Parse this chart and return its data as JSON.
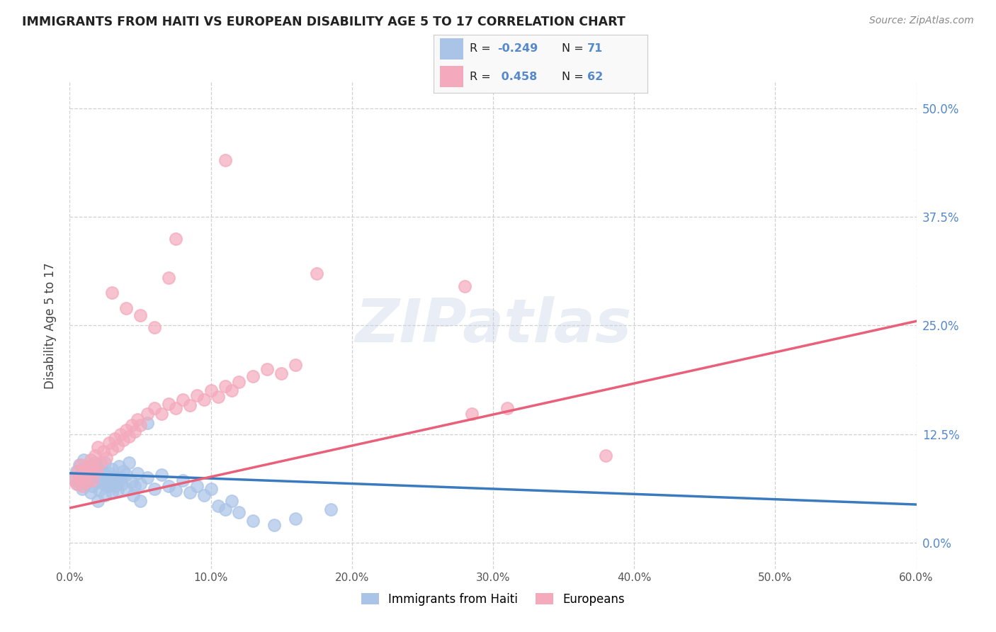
{
  "title": "IMMIGRANTS FROM HAITI VS EUROPEAN DISABILITY AGE 5 TO 17 CORRELATION CHART",
  "source": "Source: ZipAtlas.com",
  "ylabel_label": "Disability Age 5 to 17",
  "xlim": [
    0.0,
    0.6
  ],
  "ylim": [
    -0.03,
    0.53
  ],
  "haiti_scatter_color": "#aac4e8",
  "european_scatter_color": "#f4aabc",
  "haiti_line_color": "#3a7abf",
  "european_line_color": "#e8607a",
  "right_tick_color": "#5588cc",
  "haiti_R": -0.249,
  "haiti_N": 71,
  "european_R": 0.458,
  "european_N": 62,
  "haiti_line_x": [
    0.0,
    0.6
  ],
  "haiti_line_y": [
    0.08,
    0.044
  ],
  "european_line_x": [
    0.0,
    0.6
  ],
  "european_line_y": [
    0.04,
    0.255
  ],
  "watermark": "ZIPatlas",
  "bottom_legend_labels": [
    "Immigrants from Haiti",
    "Europeans"
  ],
  "haiti_points": [
    [
      0.003,
      0.075
    ],
    [
      0.005,
      0.082
    ],
    [
      0.006,
      0.068
    ],
    [
      0.007,
      0.09
    ],
    [
      0.008,
      0.078
    ],
    [
      0.009,
      0.062
    ],
    [
      0.01,
      0.085
    ],
    [
      0.011,
      0.072
    ],
    [
      0.012,
      0.068
    ],
    [
      0.013,
      0.08
    ],
    [
      0.014,
      0.074
    ],
    [
      0.015,
      0.088
    ],
    [
      0.016,
      0.065
    ],
    [
      0.017,
      0.078
    ],
    [
      0.018,
      0.083
    ],
    [
      0.019,
      0.07
    ],
    [
      0.02,
      0.086
    ],
    [
      0.021,
      0.06
    ],
    [
      0.022,
      0.075
    ],
    [
      0.023,
      0.082
    ],
    [
      0.024,
      0.068
    ],
    [
      0.025,
      0.092
    ],
    [
      0.026,
      0.078
    ],
    [
      0.027,
      0.065
    ],
    [
      0.028,
      0.08
    ],
    [
      0.029,
      0.07
    ],
    [
      0.03,
      0.085
    ],
    [
      0.031,
      0.076
    ],
    [
      0.032,
      0.065
    ],
    [
      0.033,
      0.072
    ],
    [
      0.034,
      0.06
    ],
    [
      0.035,
      0.088
    ],
    [
      0.036,
      0.075
    ],
    [
      0.037,
      0.068
    ],
    [
      0.038,
      0.082
    ],
    [
      0.04,
      0.078
    ],
    [
      0.042,
      0.092
    ],
    [
      0.044,
      0.07
    ],
    [
      0.046,
      0.065
    ],
    [
      0.048,
      0.08
    ],
    [
      0.05,
      0.068
    ],
    [
      0.055,
      0.075
    ],
    [
      0.06,
      0.062
    ],
    [
      0.065,
      0.078
    ],
    [
      0.07,
      0.065
    ],
    [
      0.075,
      0.06
    ],
    [
      0.08,
      0.072
    ],
    [
      0.085,
      0.058
    ],
    [
      0.09,
      0.065
    ],
    [
      0.095,
      0.055
    ],
    [
      0.01,
      0.095
    ],
    [
      0.015,
      0.058
    ],
    [
      0.018,
      0.092
    ],
    [
      0.02,
      0.048
    ],
    [
      0.025,
      0.055
    ],
    [
      0.028,
      0.065
    ],
    [
      0.03,
      0.058
    ],
    [
      0.035,
      0.072
    ],
    [
      0.04,
      0.062
    ],
    [
      0.045,
      0.055
    ],
    [
      0.05,
      0.048
    ],
    [
      0.055,
      0.138
    ],
    [
      0.1,
      0.062
    ],
    [
      0.105,
      0.042
    ],
    [
      0.11,
      0.038
    ],
    [
      0.115,
      0.048
    ],
    [
      0.12,
      0.035
    ],
    [
      0.13,
      0.025
    ],
    [
      0.145,
      0.02
    ],
    [
      0.16,
      0.028
    ],
    [
      0.185,
      0.038
    ]
  ],
  "european_points": [
    [
      0.003,
      0.072
    ],
    [
      0.005,
      0.068
    ],
    [
      0.006,
      0.082
    ],
    [
      0.007,
      0.075
    ],
    [
      0.008,
      0.09
    ],
    [
      0.009,
      0.065
    ],
    [
      0.01,
      0.078
    ],
    [
      0.011,
      0.085
    ],
    [
      0.012,
      0.07
    ],
    [
      0.013,
      0.088
    ],
    [
      0.014,
      0.08
    ],
    [
      0.015,
      0.095
    ],
    [
      0.016,
      0.072
    ],
    [
      0.017,
      0.088
    ],
    [
      0.018,
      0.1
    ],
    [
      0.019,
      0.082
    ],
    [
      0.02,
      0.11
    ],
    [
      0.022,
      0.092
    ],
    [
      0.024,
      0.105
    ],
    [
      0.026,
      0.098
    ],
    [
      0.028,
      0.115
    ],
    [
      0.03,
      0.108
    ],
    [
      0.032,
      0.12
    ],
    [
      0.034,
      0.112
    ],
    [
      0.036,
      0.125
    ],
    [
      0.038,
      0.118
    ],
    [
      0.04,
      0.13
    ],
    [
      0.042,
      0.122
    ],
    [
      0.044,
      0.135
    ],
    [
      0.046,
      0.128
    ],
    [
      0.048,
      0.142
    ],
    [
      0.05,
      0.135
    ],
    [
      0.055,
      0.148
    ],
    [
      0.06,
      0.155
    ],
    [
      0.065,
      0.148
    ],
    [
      0.07,
      0.16
    ],
    [
      0.075,
      0.155
    ],
    [
      0.08,
      0.165
    ],
    [
      0.085,
      0.158
    ],
    [
      0.09,
      0.17
    ],
    [
      0.095,
      0.165
    ],
    [
      0.1,
      0.175
    ],
    [
      0.105,
      0.168
    ],
    [
      0.11,
      0.18
    ],
    [
      0.115,
      0.175
    ],
    [
      0.12,
      0.185
    ],
    [
      0.13,
      0.192
    ],
    [
      0.14,
      0.2
    ],
    [
      0.15,
      0.195
    ],
    [
      0.16,
      0.205
    ],
    [
      0.03,
      0.288
    ],
    [
      0.04,
      0.27
    ],
    [
      0.05,
      0.262
    ],
    [
      0.06,
      0.248
    ],
    [
      0.07,
      0.305
    ],
    [
      0.075,
      0.35
    ],
    [
      0.11,
      0.44
    ],
    [
      0.175,
      0.31
    ],
    [
      0.28,
      0.295
    ],
    [
      0.285,
      0.148
    ],
    [
      0.31,
      0.155
    ],
    [
      0.38,
      0.1
    ]
  ]
}
